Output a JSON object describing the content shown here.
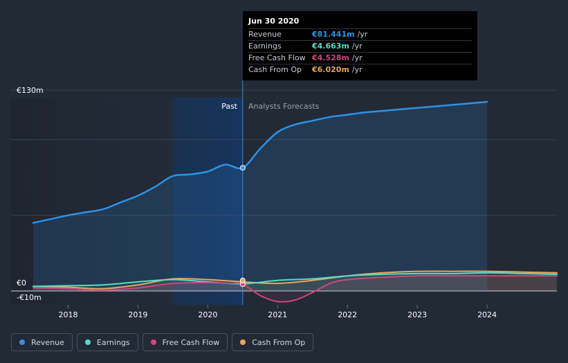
{
  "chart_data": {
    "type": "line",
    "y_axis_labels": [
      "€130m",
      "€0",
      "-€10m"
    ],
    "ylim": [
      -10,
      130
    ],
    "x_tick_labels": [
      "2018",
      "2019",
      "2020",
      "2021",
      "2022",
      "2023",
      "2024"
    ],
    "x_tick_values": [
      2018,
      2019,
      2020,
      2021,
      2022,
      2023,
      2024
    ],
    "xlim": [
      2017.5,
      2025
    ],
    "past_label": "Past",
    "forecast_label": "Analysts Forecasts",
    "divider_x": 2020.5,
    "series": [
      {
        "name": "Revenue",
        "color": "#2e92e6",
        "x": [
          2017.5,
          2017.75,
          2018,
          2018.25,
          2018.5,
          2018.75,
          2019,
          2019.25,
          2019.5,
          2019.75,
          2020,
          2020.25,
          2020.5,
          2020.75,
          2021,
          2021.25,
          2021.5,
          2021.75,
          2022,
          2022.25,
          2022.5,
          2022.75,
          2023,
          2023.25,
          2023.5,
          2023.75,
          2024
        ],
        "values": [
          45,
          47.5,
          50,
          52,
          54,
          58.5,
          63,
          69,
          76,
          77,
          79,
          83.5,
          81.4,
          94,
          105,
          110,
          112.5,
          115,
          116.5,
          118,
          119,
          120,
          121,
          122,
          123,
          124,
          125
        ]
      },
      {
        "name": "Earnings",
        "color": "#57dcc9",
        "x": [
          2017.5,
          2018,
          2018.5,
          2019,
          2019.5,
          2020,
          2020.5,
          2021,
          2021.5,
          2022,
          2022.5,
          2023,
          2023.5,
          2024,
          2024.5,
          2025
        ],
        "values": [
          3,
          3.5,
          4,
          6,
          7.5,
          6,
          4.7,
          7,
          8,
          10,
          11,
          11.5,
          11.5,
          12,
          11.5,
          11
        ]
      },
      {
        "name": "Free Cash Flow",
        "color": "#d0457d",
        "x": [
          2017.5,
          2018,
          2018.5,
          2019,
          2019.5,
          2020,
          2020.3,
          2020.5,
          2020.75,
          2021,
          2021.25,
          2021.5,
          2021.75,
          2022,
          2022.5,
          2023,
          2023.5,
          2024,
          2024.5,
          2025
        ],
        "values": [
          2,
          1.5,
          0.5,
          2,
          5,
          5.5,
          5,
          4.5,
          -3,
          -7,
          -6,
          -1,
          5,
          7.5,
          9,
          10,
          10,
          10,
          10,
          10
        ]
      },
      {
        "name": "Cash From Op",
        "color": "#e8a85a",
        "x": [
          2017.5,
          2018,
          2018.5,
          2019,
          2019.5,
          2020,
          2020.5,
          2021,
          2021.5,
          2022,
          2022.5,
          2023,
          2023.5,
          2024,
          2024.5,
          2025
        ],
        "values": [
          3,
          2.5,
          1.5,
          4,
          8,
          7.5,
          6,
          5,
          7,
          10,
          12,
          13,
          13,
          13,
          12.5,
          12
        ]
      }
    ],
    "tooltip": {
      "date": "Jun 30 2020",
      "rows": [
        {
          "label": "Revenue",
          "value": "€81.441m",
          "unit": "/yr",
          "color": "#2e92e6"
        },
        {
          "label": "Earnings",
          "value": "€4.663m",
          "unit": "/yr",
          "color": "#57dcc9"
        },
        {
          "label": "Free Cash Flow",
          "value": "€4.528m",
          "unit": "/yr",
          "color": "#d0457d"
        },
        {
          "label": "Cash From Op",
          "value": "€6.020m",
          "unit": "/yr",
          "color": "#e8a85a"
        }
      ]
    }
  },
  "legend": [
    {
      "label": "Revenue",
      "color": "#2e92e6"
    },
    {
      "label": "Earnings",
      "color": "#57dcc9"
    },
    {
      "label": "Free Cash Flow",
      "color": "#d0457d"
    },
    {
      "label": "Cash From Op",
      "color": "#e8a85a"
    }
  ]
}
